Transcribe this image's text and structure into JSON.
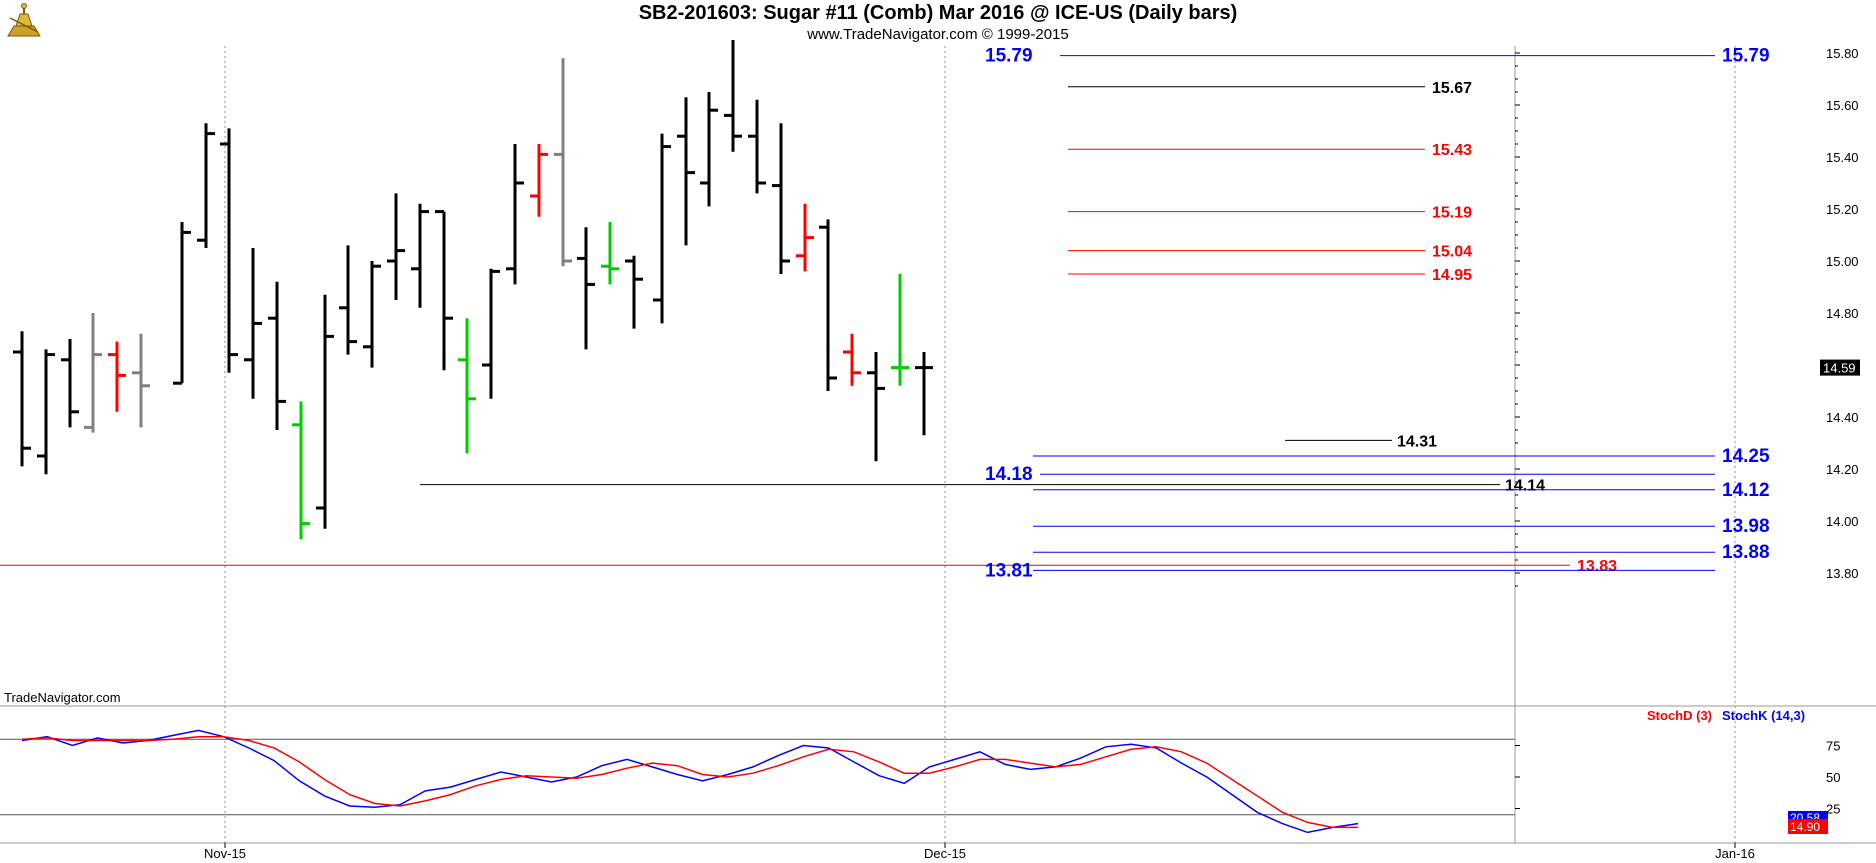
{
  "header": {
    "title": "SB2-201603:  Sugar #11 (Comb) Mar 2016 @ ICE-US  (Daily bars)",
    "subtitle": "www.TradeNavigator.com © 1999-2015"
  },
  "watermark": "TradeNavigator.com",
  "colors": {
    "up": "#000000",
    "down_red": "#ff0000",
    "gray": "#808080",
    "green": "#00cc00",
    "blue_level": "#0000ff",
    "red_level": "#ff0000",
    "black_level": "#000000"
  },
  "chart_data": [
    {
      "type": "ohlc",
      "ylim": [
        13.7,
        15.85
      ],
      "yticks": [
        "15.80",
        "15.60",
        "15.40",
        "15.20",
        "15.00",
        "14.80",
        "14.60",
        "14.40",
        "14.20",
        "14.00",
        "13.80"
      ],
      "last_price_label": "14.59",
      "xtick_labels": [
        "Nov-15",
        "Dec-15",
        "Jan-16"
      ],
      "grid": "vertical dotted at month starts",
      "bars": [
        {
          "o": 14.65,
          "h": 14.73,
          "l": 14.21,
          "c": 14.28,
          "col": "black"
        },
        {
          "o": 14.25,
          "h": 14.66,
          "l": 14.18,
          "c": 14.64,
          "col": "black"
        },
        {
          "o": 14.62,
          "h": 14.7,
          "l": 14.36,
          "c": 14.42,
          "col": "black"
        },
        {
          "o": 14.36,
          "h": 14.8,
          "l": 14.34,
          "c": 14.64,
          "col": "gray"
        },
        {
          "o": 14.64,
          "h": 14.69,
          "l": 14.42,
          "c": 14.56,
          "col": "red"
        },
        {
          "o": 14.57,
          "h": 14.72,
          "l": 14.36,
          "c": 14.52,
          "col": "gray"
        },
        {
          "o": 14.53,
          "h": 15.15,
          "l": 14.53,
          "c": 15.11,
          "col": "black"
        },
        {
          "o": 15.08,
          "h": 15.53,
          "l": 15.05,
          "c": 15.49,
          "col": "black"
        },
        {
          "o": 15.45,
          "h": 15.51,
          "l": 14.57,
          "c": 14.64,
          "col": "black"
        },
        {
          "o": 14.62,
          "h": 15.05,
          "l": 14.47,
          "c": 14.76,
          "col": "black"
        },
        {
          "o": 14.78,
          "h": 14.92,
          "l": 14.35,
          "c": 14.46,
          "col": "black"
        },
        {
          "o": 14.37,
          "h": 14.46,
          "l": 13.93,
          "c": 13.99,
          "col": "green"
        },
        {
          "o": 14.05,
          "h": 14.87,
          "l": 13.97,
          "c": 14.71,
          "col": "black"
        },
        {
          "o": 14.82,
          "h": 15.06,
          "l": 14.64,
          "c": 14.69,
          "col": "black"
        },
        {
          "o": 14.67,
          "h": 15.0,
          "l": 14.59,
          "c": 14.98,
          "col": "black"
        },
        {
          "o": 15.0,
          "h": 15.26,
          "l": 14.85,
          "c": 15.04,
          "col": "black"
        },
        {
          "o": 14.97,
          "h": 15.22,
          "l": 14.82,
          "c": 15.19,
          "col": "black"
        },
        {
          "o": 15.19,
          "h": 15.19,
          "l": 14.58,
          "c": 14.78,
          "col": "black"
        },
        {
          "o": 14.62,
          "h": 14.78,
          "l": 14.26,
          "c": 14.47,
          "col": "green"
        },
        {
          "o": 14.6,
          "h": 14.97,
          "l": 14.47,
          "c": 14.96,
          "col": "black"
        },
        {
          "o": 14.97,
          "h": 15.45,
          "l": 14.91,
          "c": 15.3,
          "col": "black"
        },
        {
          "o": 15.25,
          "h": 15.45,
          "l": 15.17,
          "c": 15.41,
          "col": "red"
        },
        {
          "o": 15.41,
          "h": 15.78,
          "l": 14.98,
          "c": 15.0,
          "col": "gray"
        },
        {
          "o": 15.01,
          "h": 15.13,
          "l": 14.66,
          "c": 14.91,
          "col": "black"
        },
        {
          "o": 14.98,
          "h": 15.15,
          "l": 14.91,
          "c": 14.97,
          "col": "green"
        },
        {
          "o": 15.0,
          "h": 15.02,
          "l": 14.74,
          "c": 14.93,
          "col": "black"
        },
        {
          "o": 14.85,
          "h": 15.49,
          "l": 14.76,
          "c": 15.44,
          "col": "black"
        },
        {
          "o": 15.48,
          "h": 15.63,
          "l": 15.06,
          "c": 15.34,
          "col": "black"
        },
        {
          "o": 15.3,
          "h": 15.65,
          "l": 15.21,
          "c": 15.58,
          "col": "black"
        },
        {
          "o": 15.56,
          "h": 15.85,
          "l": 15.42,
          "c": 15.48,
          "col": "black"
        },
        {
          "o": 15.48,
          "h": 15.62,
          "l": 15.26,
          "c": 15.3,
          "col": "black"
        },
        {
          "o": 15.29,
          "h": 15.53,
          "l": 14.95,
          "c": 15.0,
          "col": "black"
        },
        {
          "o": 15.02,
          "h": 15.22,
          "l": 14.96,
          "c": 15.09,
          "col": "red"
        },
        {
          "o": 15.13,
          "h": 15.16,
          "l": 14.5,
          "c": 14.55,
          "col": "black"
        },
        {
          "o": 14.65,
          "h": 14.72,
          "l": 14.52,
          "c": 14.57,
          "col": "red"
        },
        {
          "o": 14.57,
          "h": 14.65,
          "l": 14.23,
          "c": 14.51,
          "col": "black"
        },
        {
          "o": 14.59,
          "h": 14.95,
          "l": 14.52,
          "c": 14.59,
          "col": "green"
        },
        {
          "o": 14.59,
          "h": 14.65,
          "l": 14.33,
          "c": 14.59,
          "col": "black"
        }
      ],
      "levels": [
        {
          "value": 15.79,
          "color": "blue",
          "label": "15.79",
          "start_bar": "left",
          "end_bar": "right",
          "label_left": "15.79"
        },
        {
          "value": 15.67,
          "color": "black",
          "label": "15.67"
        },
        {
          "value": 15.43,
          "color": "red",
          "label": "15.43"
        },
        {
          "value": 15.19,
          "color": "red",
          "label": "15.19"
        },
        {
          "value": 15.04,
          "color": "red",
          "label": "15.04"
        },
        {
          "value": 14.95,
          "color": "red",
          "label": "14.95"
        },
        {
          "value": 14.31,
          "color": "black",
          "label": "14.31"
        },
        {
          "value": 14.25,
          "color": "blue",
          "label": "14.25"
        },
        {
          "value": 14.18,
          "color": "blue",
          "label": "14.18"
        },
        {
          "value": 14.14,
          "color": "black",
          "label": "14.14"
        },
        {
          "value": 14.12,
          "color": "blue",
          "label": "14.12"
        },
        {
          "value": 13.98,
          "color": "blue",
          "label": "13.98"
        },
        {
          "value": 13.88,
          "color": "blue",
          "label": "13.88"
        },
        {
          "value": 13.83,
          "color": "red",
          "label": "13.83"
        },
        {
          "value": 13.81,
          "color": "blue",
          "label": "13.81"
        }
      ]
    },
    {
      "type": "line",
      "title": "",
      "legend": [
        "StochD (3)",
        "StochK (14,3)"
      ],
      "ylim": [
        0,
        100
      ],
      "yticks": [
        "75",
        "50",
        "25"
      ],
      "reference_levels": [
        80,
        20
      ],
      "last_labels": [
        "20.58",
        "14.90"
      ],
      "series": [
        {
          "name": "StochK (14,3)",
          "color": "#0000ff",
          "values": [
            79,
            82,
            75,
            81,
            77,
            79,
            83,
            87,
            82,
            73,
            63,
            47,
            35,
            27,
            26,
            28,
            39,
            42,
            48,
            54,
            50,
            46,
            50,
            59,
            64,
            58,
            52,
            47,
            52,
            58,
            67,
            75,
            73,
            62,
            51,
            45,
            58,
            64,
            70,
            60,
            56,
            58,
            65,
            74,
            76,
            73,
            61,
            50,
            36,
            22,
            13,
            6,
            10,
            13
          ]
        },
        {
          "name": "StochD (3)",
          "color": "#ff0000",
          "values": [
            80,
            81,
            79,
            79,
            79,
            79,
            80,
            82,
            82,
            79,
            73,
            62,
            48,
            36,
            29,
            27,
            31,
            36,
            43,
            48,
            51,
            50,
            49,
            52,
            57,
            61,
            59,
            52,
            50,
            53,
            59,
            66,
            72,
            70,
            62,
            53,
            53,
            58,
            64,
            64,
            61,
            58,
            60,
            66,
            72,
            74,
            70,
            61,
            48,
            35,
            22,
            14,
            10,
            10
          ]
        }
      ]
    }
  ]
}
